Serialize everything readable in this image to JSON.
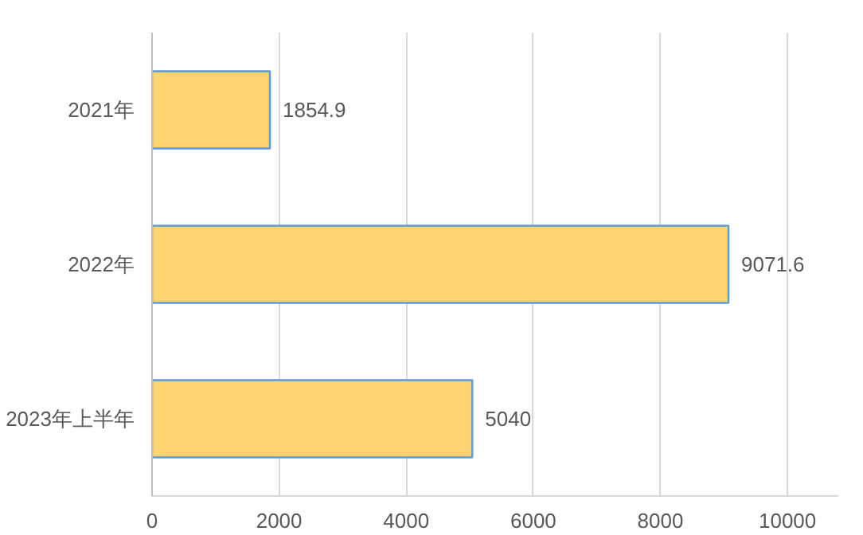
{
  "chart_data": {
    "type": "bar",
    "orientation": "horizontal",
    "categories": [
      "2021年",
      "2022年",
      "2023年上半年"
    ],
    "values": [
      1854.9,
      9071.6,
      5040
    ],
    "color": "#ffd470",
    "xlim": [
      0,
      10800
    ],
    "xticks": [
      0,
      2000,
      4000,
      6000,
      8000,
      10000
    ],
    "grid": "x",
    "data_labels": true
  }
}
